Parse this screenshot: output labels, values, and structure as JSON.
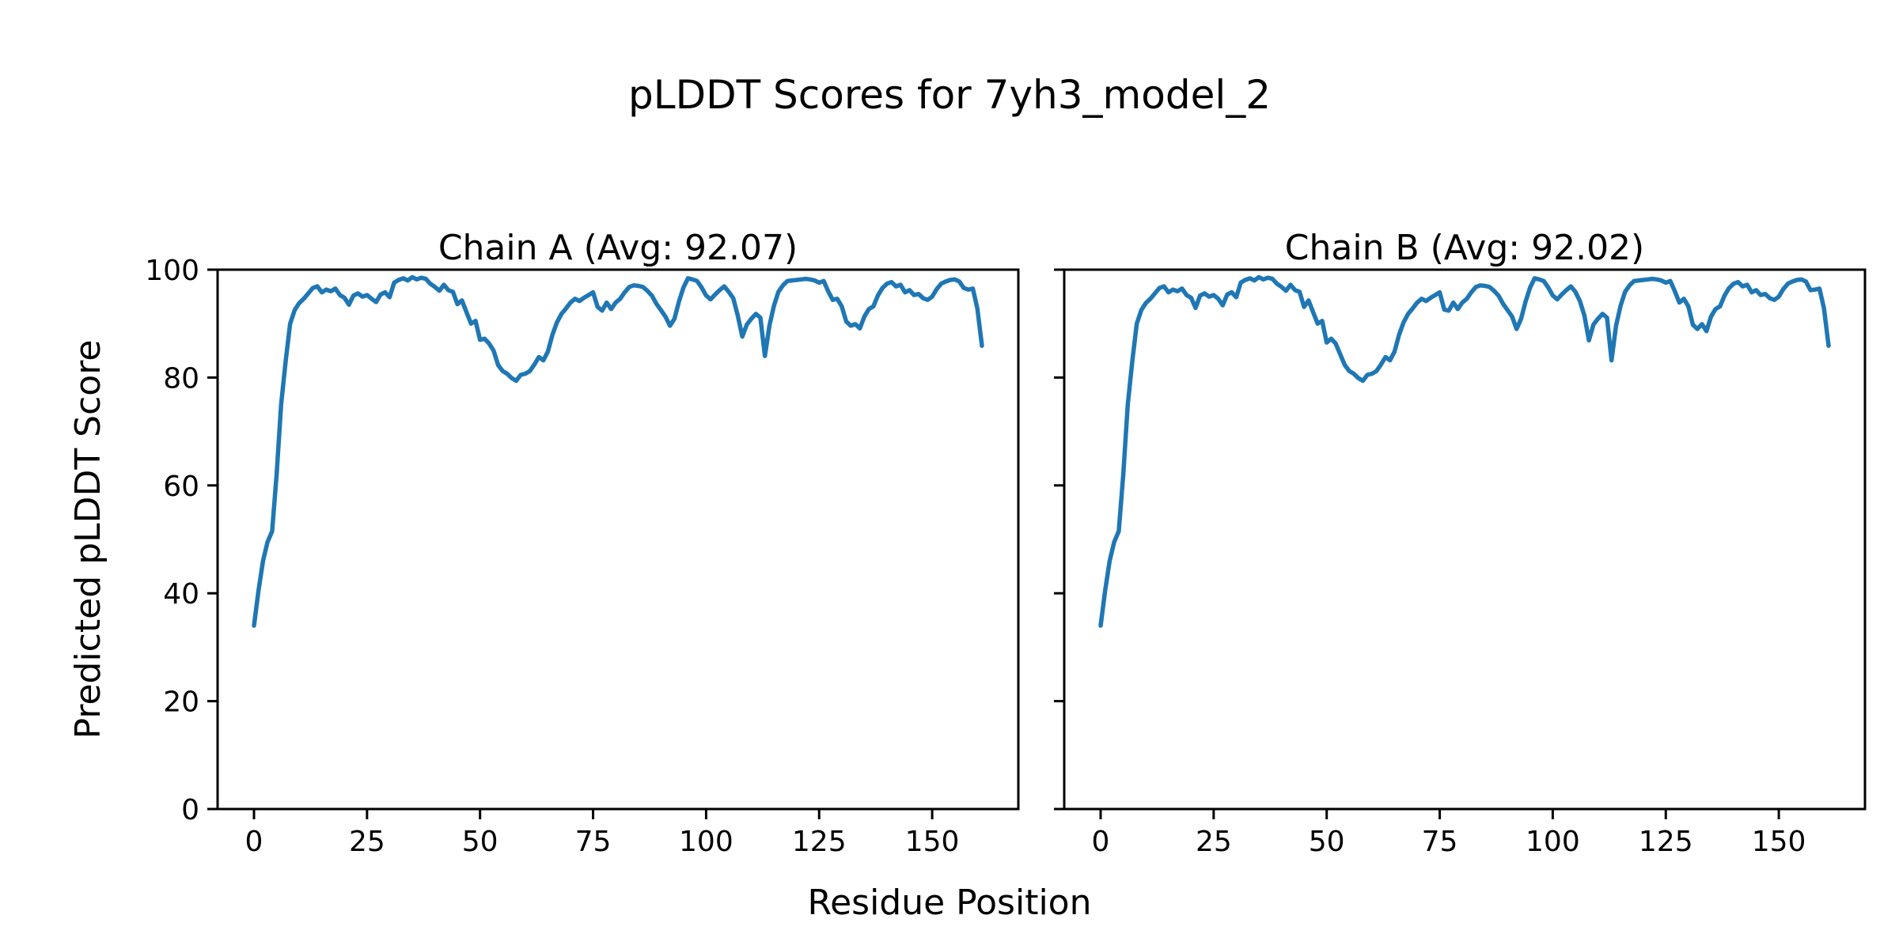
{
  "figure": {
    "title": "pLDDT Scores for 7yh3_model_2",
    "xlabel": "Residue Position",
    "ylabel": "Predicted pLDDT Score"
  },
  "chart_data": [
    {
      "type": "line",
      "title": "Chain A (Avg: 92.07)",
      "series_name": "Chain A",
      "avg": 92.07,
      "xlabel": "Residue Position",
      "ylabel": "Predicted pLDDT Score",
      "x_start": 0,
      "x_step": 1,
      "xticks": [
        0,
        25,
        50,
        75,
        100,
        125,
        150
      ],
      "yticks": [
        0,
        20,
        40,
        60,
        80,
        100
      ],
      "ylim": [
        0,
        100
      ],
      "xlim": [
        -8,
        169
      ],
      "grid": false,
      "legend_position": "none",
      "line_color": "#1f77b4",
      "values": [
        34.0,
        40.5,
        46.0,
        49.5,
        51.5,
        62.0,
        75.0,
        83.0,
        90.0,
        92.5,
        93.8,
        94.6,
        95.6,
        96.6,
        96.9,
        95.8,
        96.3,
        96.0,
        96.5,
        95.3,
        94.8,
        93.5,
        95.2,
        95.6,
        95.0,
        95.3,
        94.6,
        94.0,
        95.4,
        95.8,
        94.9,
        97.6,
        98.1,
        98.4,
        98.0,
        98.6,
        98.2,
        98.5,
        98.3,
        97.4,
        96.8,
        96.1,
        97.2,
        96.2,
        95.9,
        93.6,
        94.3,
        92.1,
        90.0,
        90.5,
        87.0,
        87.2,
        86.3,
        85.0,
        82.3,
        81.2,
        80.7,
        79.9,
        79.4,
        80.5,
        80.7,
        81.2,
        82.4,
        83.8,
        83.2,
        84.8,
        87.9,
        90.2,
        91.8,
        92.8,
        93.9,
        94.6,
        94.2,
        94.8,
        95.3,
        95.8,
        93.1,
        92.4,
        93.9,
        92.7,
        93.9,
        94.6,
        95.8,
        96.8,
        97.1,
        97.0,
        96.8,
        96.1,
        95.2,
        93.7,
        92.5,
        91.3,
        89.6,
        90.9,
        94.1,
        96.7,
        98.4,
        98.2,
        97.9,
        96.7,
        95.2,
        94.5,
        95.4,
        96.2,
        96.9,
        95.9,
        94.7,
        91.5,
        87.6,
        89.8,
        90.9,
        91.8,
        91.1,
        84.0,
        89.6,
        93.3,
        95.9,
        97.1,
        97.9,
        98.0,
        98.1,
        98.2,
        98.3,
        98.2,
        98.0,
        97.6,
        97.9,
        96.0,
        94.4,
        94.6,
        93.2,
        90.4,
        89.6,
        89.9,
        89.1,
        91.3,
        92.7,
        93.2,
        95.2,
        96.6,
        97.4,
        97.7,
        96.9,
        97.2,
        95.8,
        96.2,
        95.3,
        95.5,
        94.7,
        94.4,
        95.0,
        96.4,
        97.4,
        97.8,
        98.1,
        98.2,
        97.8,
        96.6,
        96.3,
        96.5,
        92.8,
        85.9
      ]
    },
    {
      "type": "line",
      "title": "Chain B (Avg: 92.02)",
      "series_name": "Chain B",
      "avg": 92.02,
      "xlabel": "Residue Position",
      "ylabel": "Predicted pLDDT Score",
      "x_start": 0,
      "x_step": 1,
      "xticks": [
        0,
        25,
        50,
        75,
        100,
        125,
        150
      ],
      "yticks": [
        0,
        20,
        40,
        60,
        80,
        100
      ],
      "ylim": [
        0,
        100
      ],
      "xlim": [
        -8,
        169
      ],
      "grid": false,
      "legend_position": "none",
      "line_color": "#1f77b4",
      "values": [
        34.0,
        40.5,
        46.0,
        49.5,
        51.5,
        62.0,
        75.0,
        83.0,
        90.0,
        92.5,
        93.8,
        94.6,
        95.6,
        96.6,
        96.9,
        95.8,
        96.3,
        96.0,
        96.5,
        95.3,
        94.8,
        92.9,
        95.2,
        95.6,
        95.0,
        95.3,
        94.6,
        93.4,
        95.4,
        95.8,
        94.9,
        97.6,
        98.1,
        98.4,
        98.0,
        98.6,
        98.2,
        98.5,
        98.3,
        97.4,
        96.8,
        96.1,
        97.2,
        96.2,
        95.9,
        93.1,
        94.3,
        92.1,
        90.0,
        90.5,
        86.5,
        87.2,
        86.3,
        84.3,
        82.3,
        81.2,
        80.7,
        79.9,
        79.4,
        80.5,
        80.7,
        81.2,
        82.4,
        83.8,
        83.2,
        84.8,
        87.9,
        90.2,
        91.8,
        92.8,
        93.9,
        94.6,
        94.2,
        94.8,
        95.3,
        95.8,
        92.6,
        92.4,
        93.9,
        92.7,
        93.9,
        94.6,
        95.8,
        96.8,
        97.1,
        97.0,
        96.8,
        96.1,
        95.2,
        93.7,
        92.5,
        91.3,
        89.0,
        90.9,
        94.1,
        96.7,
        98.4,
        98.2,
        97.9,
        96.7,
        95.2,
        94.5,
        95.4,
        96.2,
        96.9,
        95.9,
        94.2,
        91.5,
        86.9,
        89.8,
        90.9,
        91.8,
        91.1,
        83.2,
        89.6,
        93.3,
        95.9,
        97.1,
        97.9,
        98.0,
        98.1,
        98.2,
        98.3,
        98.2,
        98.0,
        97.6,
        97.9,
        96.0,
        93.9,
        94.6,
        93.2,
        89.8,
        89.0,
        89.9,
        88.6,
        91.3,
        92.7,
        93.2,
        95.2,
        96.6,
        97.4,
        97.7,
        96.9,
        97.2,
        95.8,
        96.2,
        95.3,
        95.5,
        94.7,
        94.4,
        95.0,
        96.4,
        97.4,
        97.8,
        98.1,
        98.2,
        97.8,
        96.2,
        96.3,
        96.5,
        92.8,
        85.9
      ]
    }
  ]
}
